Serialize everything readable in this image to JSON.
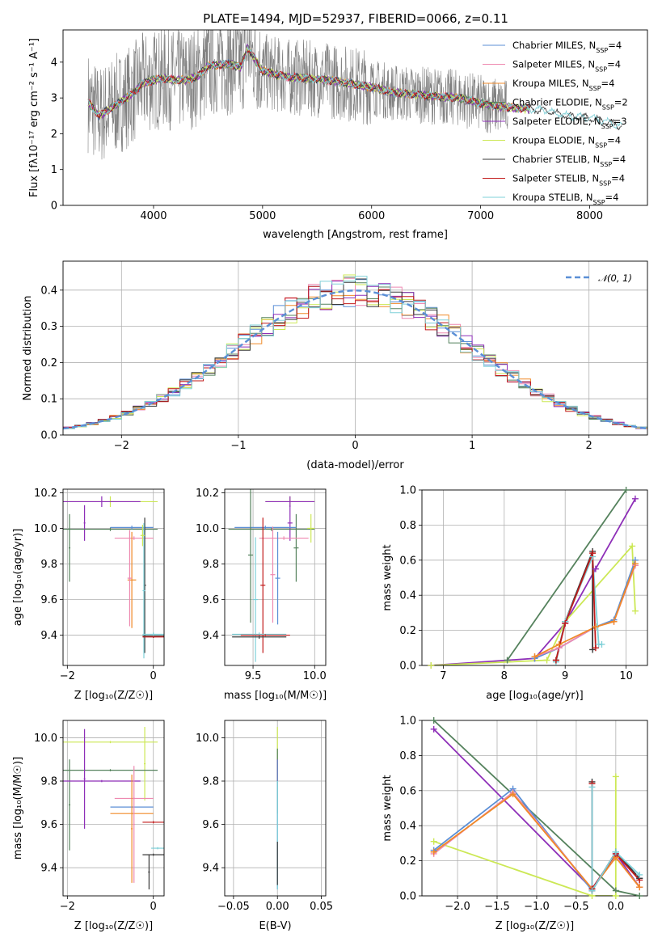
{
  "figure": {
    "title": "PLATE=1494, MJD=52937, FIBERID=0066, z=0.11"
  },
  "colors": {
    "Chabrier MILES": "#5b8fd6",
    "Salpeter MILES": "#ee88b0",
    "Kroupa MILES": "#f08a28",
    "Chabrier ELODIE": "#55825d",
    "Salpeter ELODIE": "#8e2fb8",
    "Kroupa ELODIE": "#cce855",
    "Chabrier STELIB": "#3a3a3a",
    "Salpeter STELIB": "#c21b1b",
    "Kroupa STELIB": "#7fd0d8",
    "data": "#808080",
    "normal": "#5b8fd6"
  },
  "chart_data": [
    {
      "id": "spectrum",
      "type": "line",
      "xlabel": "wavelength [Angstrom, rest frame]",
      "ylabel": "Flux [f_λ 10^-17 erg cm^-2 s^-1 A^-1]",
      "xlim": [
        3170,
        8530
      ],
      "ylim": [
        0,
        4.9
      ],
      "xticks": [
        4000,
        5000,
        6000,
        7000,
        8000
      ],
      "yticks": [
        0,
        1,
        2,
        3,
        4
      ],
      "grid": false,
      "legend_position": "right",
      "legend": [
        {
          "name": "Chabrier MILES",
          "label": "Chabrier MILES, N",
          "sub": "SSP",
          "n": "=4"
        },
        {
          "name": "Salpeter MILES",
          "label": "Salpeter MILES, N",
          "sub": "SSP",
          "n": "=4"
        },
        {
          "name": "Kroupa MILES",
          "label": "Kroupa MILES, N",
          "sub": "SSP",
          "n": "=4"
        },
        {
          "name": "Chabrier ELODIE",
          "label": "Chabrier ELODIE, N",
          "sub": "SSP",
          "n": "=2"
        },
        {
          "name": "Salpeter ELODIE",
          "label": "Salpeter ELODIE, N",
          "sub": "SSP",
          "n": "=3"
        },
        {
          "name": "Kroupa ELODIE",
          "label": "Kroupa ELODIE, N",
          "sub": "SSP",
          "n": "=4"
        },
        {
          "name": "Chabrier STELIB",
          "label": "Chabrier STELIB, N",
          "sub": "SSP",
          "n": "=4"
        },
        {
          "name": "Salpeter STELIB",
          "label": "Salpeter STELIB, N",
          "sub": "SSP",
          "n": "=4"
        },
        {
          "name": "Kroupa STELIB",
          "label": "Kroupa STELIB, N",
          "sub": "SSP",
          "n": "=4"
        }
      ],
      "model_continuum": {
        "x": [
          3400,
          3500,
          3600,
          3700,
          3800,
          3900,
          4000,
          4100,
          4200,
          4300,
          4400,
          4500,
          4700,
          4800,
          4860,
          5000,
          5200,
          5400,
          5600,
          5800,
          6000,
          6200,
          6400,
          6600,
          6800,
          7000,
          7200,
          7400,
          7600,
          7800,
          8000,
          8200,
          8300
        ],
        "y": [
          2.9,
          2.5,
          2.7,
          2.9,
          3.1,
          3.4,
          3.5,
          3.55,
          3.5,
          3.5,
          3.6,
          3.9,
          3.95,
          3.85,
          4.4,
          3.75,
          3.6,
          3.55,
          3.5,
          3.4,
          3.3,
          3.15,
          3.1,
          3.05,
          3.0,
          2.85,
          2.75,
          2.7,
          2.65,
          2.5,
          2.45,
          2.3,
          2.2
        ]
      },
      "data_noise": 0.9
    },
    {
      "id": "residuals",
      "type": "line",
      "xlabel": "(data-model)/error",
      "ylabel": "Normed distribution",
      "xlim": [
        -2.5,
        2.5
      ],
      "ylim": [
        0,
        0.48
      ],
      "xticks": [
        -2,
        -1,
        0,
        1,
        2
      ],
      "yticks": [
        0.0,
        0.1,
        0.2,
        0.3,
        0.4
      ],
      "grid": true,
      "legend_position": "top-right",
      "normal_label": "𝒩(0, 1)",
      "bin_width": 0.1
    },
    {
      "id": "age_vs_Z",
      "type": "scatter",
      "xlabel": "Z [log₁₀(Z/Z☉)]",
      "ylabel": "age  [log₁₀(age/yr)]",
      "xlim": [
        -2.1,
        0.25
      ],
      "ylim": [
        9.23,
        10.22
      ],
      "xticks": [
        -2,
        0
      ],
      "yticks": [
        9.4,
        9.6,
        9.8,
        10.0,
        10.2
      ],
      "grid": true,
      "points": [
        {
          "model": "Kroupa ELODIE",
          "x": -1.0,
          "xerr": 1.1,
          "y": 10.15,
          "yerr": 0.03
        },
        {
          "model": "Salpeter ELODIE",
          "x": -1.2,
          "xerr": 0.9,
          "y": 10.15,
          "yerr": 0.03
        },
        {
          "model": "Salpeter ELODIE",
          "x": -1.6,
          "xerr": 0.02,
          "y": 10.03,
          "yerr": 0.1
        },
        {
          "model": "Chabrier ELODIE",
          "x": -1.0,
          "xerr": 1.1,
          "y": 9.995,
          "yerr": 0.01
        },
        {
          "model": "Chabrier ELODIE",
          "x": -1.95,
          "xerr": 0.02,
          "y": 9.89,
          "yerr": 0.19
        },
        {
          "model": "Chabrier MILES",
          "x": -0.5,
          "xerr": 0.5,
          "y": 10.005,
          "yerr": 0.01
        },
        {
          "model": "Salpeter MILES",
          "x": -0.45,
          "xerr": 0.45,
          "y": 9.945,
          "yerr": 0.01
        },
        {
          "model": "Kroupa MILES",
          "x": -0.5,
          "xerr": 0.1,
          "y": 9.71,
          "yerr": 0.27
        },
        {
          "model": "Salpeter MILES",
          "x": -0.55,
          "xerr": 0.05,
          "y": 9.72,
          "yerr": 0.27
        },
        {
          "model": "Chabrier STELIB",
          "x": -0.2,
          "xerr": 0.03,
          "y": 9.68,
          "yerr": 0.38
        },
        {
          "model": "Kroupa STELIB",
          "x": -0.22,
          "xerr": 0.03,
          "y": 9.65,
          "yerr": 0.38
        },
        {
          "model": "Kroupa ELODIE",
          "x": -0.25,
          "xerr": 0.05,
          "y": 9.96,
          "yerr": 0.06
        },
        {
          "model": "Chabrier STELIB",
          "x": 0.0,
          "xerr": 0.25,
          "y": 9.395,
          "yerr": 0.01
        },
        {
          "model": "Kroupa STELIB",
          "x": 0.0,
          "xerr": 0.25,
          "y": 9.405,
          "yerr": 0.01
        },
        {
          "model": "Salpeter STELIB",
          "x": 0.0,
          "xerr": 0.25,
          "y": 9.39,
          "yerr": 0.005
        }
      ]
    },
    {
      "id": "age_vs_mass",
      "type": "scatter",
      "xlabel": "mass [log₁₀(M/M☉)]",
      "ylabel": "",
      "xlim": [
        9.27,
        10.09
      ],
      "ylim": [
        9.23,
        10.22
      ],
      "xticks": [
        9.5,
        10.0
      ],
      "yticks": [
        9.4,
        9.6,
        9.8,
        10.0,
        10.2
      ],
      "grid": true,
      "points": [
        {
          "model": "Kroupa ELODIE",
          "x": 9.8,
          "xerr": 0.2,
          "y": 10.15,
          "yerr": 0.03
        },
        {
          "model": "Salpeter ELODIE",
          "x": 9.8,
          "xerr": 0.2,
          "y": 10.15,
          "yerr": 0.03
        },
        {
          "model": "Salpeter ELODIE",
          "x": 9.8,
          "xerr": 0.02,
          "y": 10.03,
          "yerr": 0.1
        },
        {
          "model": "Chabrier ELODIE",
          "x": 9.65,
          "xerr": 0.35,
          "y": 9.995,
          "yerr": 0.01
        },
        {
          "model": "Chabrier ELODIE",
          "x": 9.85,
          "xerr": 0.02,
          "y": 9.89,
          "yerr": 0.19
        },
        {
          "model": "Chabrier MILES",
          "x": 9.6,
          "xerr": 0.25,
          "y": 10.005,
          "yerr": 0.01
        },
        {
          "model": "Salpeter MILES",
          "x": 9.75,
          "xerr": 0.2,
          "y": 9.945,
          "yerr": 0.01
        },
        {
          "model": "Kroupa ELODIE",
          "x": 9.97,
          "xerr": 0.03,
          "y": 10.0,
          "yerr": 0.08
        },
        {
          "model": "Chabrier ELODIE",
          "x": 9.48,
          "xerr": 0.02,
          "y": 9.85,
          "yerr": 0.38
        },
        {
          "model": "Salpeter STELIB",
          "x": 9.58,
          "xerr": 0.02,
          "y": 9.68,
          "yerr": 0.38
        },
        {
          "model": "Salpeter MILES",
          "x": 9.66,
          "xerr": 0.02,
          "y": 9.74,
          "yerr": 0.27
        },
        {
          "model": "Chabrier MILES",
          "x": 9.7,
          "xerr": 0.02,
          "y": 9.72,
          "yerr": 0.26
        },
        {
          "model": "Kroupa STELIB",
          "x": 9.52,
          "xerr": 0.02,
          "y": 9.6,
          "yerr": 0.35
        },
        {
          "model": "Chabrier STELIB",
          "x": 9.55,
          "xerr": 0.22,
          "y": 9.39,
          "yerr": 0.01
        },
        {
          "model": "Kroupa STELIB",
          "x": 9.55,
          "xerr": 0.22,
          "y": 9.405,
          "yerr": 0.01
        },
        {
          "model": "Salpeter STELIB",
          "x": 9.6,
          "xerr": 0.2,
          "y": 9.4,
          "yerr": 0.005
        }
      ]
    },
    {
      "id": "weight_vs_age",
      "type": "line",
      "xlabel": "age  [log₁₀(age/yr)]",
      "ylabel": "mass weight",
      "xlim": [
        6.65,
        10.35
      ],
      "ylim": [
        0,
        1.0
      ],
      "xticks": [
        7,
        8,
        9,
        10
      ],
      "yticks": [
        0.0,
        0.2,
        0.4,
        0.6,
        0.8,
        1.0
      ],
      "grid": true,
      "series": [
        {
          "model": "Chabrier ELODIE",
          "x": [
            8.05,
            10.0
          ],
          "y": [
            0.03,
            1.0
          ]
        },
        {
          "model": "Salpeter ELODIE",
          "x": [
            6.8,
            8.5,
            9.0,
            9.5,
            10.15
          ],
          "y": [
            0.0,
            0.04,
            0.24,
            0.55,
            0.95
          ]
        },
        {
          "model": "Kroupa ELODIE",
          "x": [
            6.8,
            8.7,
            9.0,
            10.1,
            10.15
          ],
          "y": [
            0.0,
            0.03,
            0.25,
            0.68,
            0.31
          ]
        },
        {
          "model": "Chabrier MILES",
          "x": [
            8.5,
            8.9,
            9.5,
            9.8,
            10.15
          ],
          "y": [
            0.04,
            0.1,
            0.22,
            0.26,
            0.6
          ]
        },
        {
          "model": "Salpeter MILES",
          "x": [
            8.5,
            8.9,
            9.5,
            9.8,
            10.15
          ],
          "y": [
            0.05,
            0.1,
            0.22,
            0.25,
            0.57
          ]
        },
        {
          "model": "Kroupa MILES",
          "x": [
            8.5,
            8.9,
            9.5,
            9.8,
            10.15
          ],
          "y": [
            0.05,
            0.12,
            0.22,
            0.25,
            0.58
          ]
        },
        {
          "model": "Chabrier STELIB",
          "x": [
            8.85,
            9.0,
            9.45,
            9.45
          ],
          "y": [
            0.03,
            0.25,
            0.65,
            0.09
          ]
        },
        {
          "model": "Kroupa STELIB",
          "x": [
            8.85,
            9.0,
            9.45,
            9.55,
            9.6
          ],
          "y": [
            0.02,
            0.25,
            0.62,
            0.12,
            0.12
          ]
        },
        {
          "model": "Salpeter STELIB",
          "x": [
            8.85,
            9.0,
            9.45,
            9.5
          ],
          "y": [
            0.03,
            0.24,
            0.64,
            0.1
          ]
        }
      ]
    },
    {
      "id": "mass_vs_Z",
      "type": "scatter",
      "xlabel": "Z [log₁₀(Z/Z☉)]",
      "ylabel": "mass [log₁₀(M/M☉)]",
      "xlim": [
        -2.1,
        0.25
      ],
      "ylim": [
        9.27,
        10.08
      ],
      "xticks": [
        -2,
        0
      ],
      "yticks": [
        9.4,
        9.6,
        9.8,
        10.0
      ],
      "grid": true,
      "points": [
        {
          "model": "Kroupa ELODIE",
          "x": -1.0,
          "xerr": 1.1,
          "y": 9.98,
          "yerr": 0.005
        },
        {
          "model": "Kroupa ELODIE",
          "x": -0.2,
          "xerr": 0.02,
          "y": 9.88,
          "yerr": 0.17
        },
        {
          "model": "Chabrier ELODIE",
          "x": -1.0,
          "xerr": 1.1,
          "y": 9.85,
          "yerr": 0.005
        },
        {
          "model": "Chabrier ELODIE",
          "x": -1.95,
          "xerr": 0.02,
          "y": 9.69,
          "yerr": 0.21
        },
        {
          "model": "Salpeter ELODIE",
          "x": -1.2,
          "xerr": 0.9,
          "y": 9.8,
          "yerr": 0.005
        },
        {
          "model": "Salpeter ELODIE",
          "x": -1.6,
          "xerr": 0.02,
          "y": 9.81,
          "yerr": 0.23
        },
        {
          "model": "Salpeter MILES",
          "x": -0.45,
          "xerr": 0.45,
          "y": 9.72,
          "yerr": 0.005
        },
        {
          "model": "Chabrier MILES",
          "x": -0.5,
          "xerr": 0.5,
          "y": 9.68,
          "yerr": 0.005
        },
        {
          "model": "Kroupa MILES",
          "x": -0.5,
          "xerr": 0.5,
          "y": 9.65,
          "yerr": 0.005
        },
        {
          "model": "Salpeter MILES",
          "x": -0.45,
          "xerr": 0.02,
          "y": 9.6,
          "yerr": 0.27
        },
        {
          "model": "Kroupa MILES",
          "x": -0.5,
          "xerr": 0.02,
          "y": 9.58,
          "yerr": 0.25
        },
        {
          "model": "Salpeter STELIB",
          "x": 0.0,
          "xerr": 0.25,
          "y": 9.61,
          "yerr": 0.005
        },
        {
          "model": "Kroupa STELIB",
          "x": 0.1,
          "xerr": 0.15,
          "y": 9.49,
          "yerr": 0.005
        },
        {
          "model": "Chabrier STELIB",
          "x": 0.0,
          "xerr": 0.25,
          "y": 9.46,
          "yerr": 0.005
        },
        {
          "model": "Chabrier STELIB",
          "x": -0.1,
          "xerr": 0.02,
          "y": 9.38,
          "yerr": 0.08
        }
      ]
    },
    {
      "id": "mass_vs_ebv",
      "type": "scatter",
      "xlabel": "E(B-V)",
      "ylabel": "",
      "xlim": [
        -0.06,
        0.055
      ],
      "ylim": [
        9.27,
        10.08
      ],
      "xticks": [
        -0.05,
        0.0,
        0.05
      ],
      "yticks": [
        9.4,
        9.6,
        9.8,
        10.0
      ],
      "grid": true,
      "points": [
        {
          "model": "Kroupa ELODIE",
          "x": 0.0,
          "xerr": 0.0,
          "y": 9.95,
          "yerr": 0.1
        },
        {
          "model": "Chabrier ELODIE",
          "x": 0.0,
          "xerr": 0.0,
          "y": 9.8,
          "yerr": 0.15
        },
        {
          "model": "Salpeter STELIB",
          "x": 0.0,
          "xerr": 0.0,
          "y": 9.85,
          "yerr": 0.05
        },
        {
          "model": "Chabrier MILES",
          "x": 0.0,
          "xerr": 0.0,
          "y": 9.6,
          "yerr": 0.3
        },
        {
          "model": "Kroupa STELIB",
          "x": 0.0,
          "xerr": 0.0,
          "y": 9.55,
          "yerr": 0.25
        },
        {
          "model": "Chabrier STELIB",
          "x": 0.0,
          "xerr": 0.0,
          "y": 9.42,
          "yerr": 0.1
        }
      ]
    },
    {
      "id": "weight_vs_Z",
      "type": "line",
      "xlabel": "Z [log₁₀(Z/Z☉)]",
      "ylabel": "mass weight",
      "xlim": [
        -2.45,
        0.4
      ],
      "ylim": [
        0,
        1.0
      ],
      "xticks": [
        -2.0,
        -1.5,
        -1.0,
        -0.5,
        0.0
      ],
      "yticks": [
        0.0,
        0.2,
        0.4,
        0.6,
        0.8,
        1.0
      ],
      "grid": true,
      "series": [
        {
          "model": "Chabrier ELODIE",
          "x": [
            -2.3,
            0.0,
            0.3
          ],
          "y": [
            1.0,
            0.03,
            0.0
          ]
        },
        {
          "model": "Salpeter ELODIE",
          "x": [
            -2.3,
            -0.3,
            0.0,
            0.3
          ],
          "y": [
            0.95,
            0.04,
            0.24,
            0.05
          ]
        },
        {
          "model": "Kroupa ELODIE",
          "x": [
            -2.3,
            -0.3,
            0.0,
            0.0
          ],
          "y": [
            0.31,
            0.0,
            0.0,
            0.68
          ]
        },
        {
          "model": "Chabrier MILES",
          "x": [
            -2.3,
            -1.3,
            -0.3,
            0.0,
            0.3
          ],
          "y": [
            0.26,
            0.61,
            0.03,
            0.25,
            0.1
          ]
        },
        {
          "model": "Salpeter MILES",
          "x": [
            -2.3,
            -1.3,
            -0.3,
            0.0,
            0.3
          ],
          "y": [
            0.24,
            0.59,
            0.04,
            0.22,
            0.05
          ]
        },
        {
          "model": "Kroupa MILES",
          "x": [
            -2.3,
            -1.3,
            -0.3,
            0.0,
            0.3
          ],
          "y": [
            0.25,
            0.58,
            0.04,
            0.22,
            0.05
          ]
        },
        {
          "model": "Chabrier STELIB",
          "x": [
            -0.3,
            -0.3,
            0.0,
            0.3
          ],
          "y": [
            0.65,
            0.03,
            0.25,
            0.1
          ]
        },
        {
          "model": "Salpeter STELIB",
          "x": [
            -0.3,
            -0.3,
            0.0,
            0.3
          ],
          "y": [
            0.64,
            0.04,
            0.24,
            0.09
          ]
        },
        {
          "model": "Kroupa STELIB",
          "x": [
            -0.3,
            -0.3,
            0.0,
            0.3
          ],
          "y": [
            0.62,
            0.03,
            0.25,
            0.12
          ]
        }
      ]
    }
  ]
}
